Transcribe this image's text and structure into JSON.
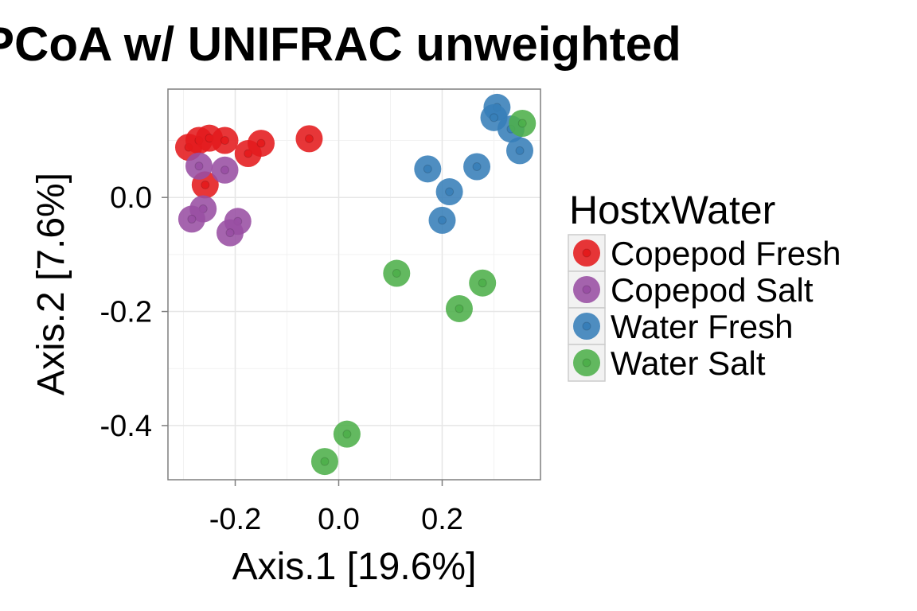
{
  "chart_data": {
    "type": "scatter",
    "title": "PCoA w/ UNIFRAC unweighted",
    "xlabel": "Axis.1   [19.6%]",
    "ylabel": "Axis.2   [7.6%]",
    "xlim": [
      -0.33,
      0.39
    ],
    "ylim": [
      -0.495,
      0.19
    ],
    "x_ticks": [
      -0.2,
      0.0,
      0.2
    ],
    "y_ticks": [
      0.0,
      -0.2,
      -0.4
    ],
    "x_tick_labels": [
      "-0.2",
      "0.0",
      "0.2"
    ],
    "y_tick_labels": [
      "0.0",
      "-0.2",
      "-0.4"
    ],
    "grid": true,
    "legend_position": "right",
    "legend_title": "HostxWater",
    "series": [
      {
        "name": "Copepod Fresh",
        "color": "#e41a1c",
        "points": [
          {
            "x": -0.29,
            "y": 0.088
          },
          {
            "x": -0.27,
            "y": 0.1
          },
          {
            "x": -0.25,
            "y": 0.104
          },
          {
            "x": -0.22,
            "y": 0.1
          },
          {
            "x": -0.175,
            "y": 0.077
          },
          {
            "x": -0.15,
            "y": 0.095
          },
          {
            "x": -0.057,
            "y": 0.103
          },
          {
            "x": -0.258,
            "y": 0.022
          }
        ]
      },
      {
        "name": "Copepod Salt",
        "color": "#984ea3",
        "points": [
          {
            "x": -0.27,
            "y": 0.055
          },
          {
            "x": -0.22,
            "y": 0.048
          },
          {
            "x": -0.262,
            "y": -0.02
          },
          {
            "x": -0.284,
            "y": -0.038
          },
          {
            "x": -0.195,
            "y": -0.042
          },
          {
            "x": -0.21,
            "y": -0.062
          }
        ]
      },
      {
        "name": "Water Fresh",
        "color": "#377eb8",
        "points": [
          {
            "x": 0.306,
            "y": 0.158
          },
          {
            "x": 0.3,
            "y": 0.14
          },
          {
            "x": 0.333,
            "y": 0.12
          },
          {
            "x": 0.35,
            "y": 0.082
          },
          {
            "x": 0.172,
            "y": 0.05
          },
          {
            "x": 0.267,
            "y": 0.054
          },
          {
            "x": 0.214,
            "y": 0.01
          },
          {
            "x": 0.2,
            "y": -0.04
          }
        ]
      },
      {
        "name": "Water Salt",
        "color": "#4daf4a",
        "points": [
          {
            "x": 0.355,
            "y": 0.13
          },
          {
            "x": 0.112,
            "y": -0.133
          },
          {
            "x": 0.278,
            "y": -0.15
          },
          {
            "x": 0.233,
            "y": -0.195
          },
          {
            "x": 0.016,
            "y": -0.415
          },
          {
            "x": -0.027,
            "y": -0.463
          }
        ]
      }
    ]
  }
}
